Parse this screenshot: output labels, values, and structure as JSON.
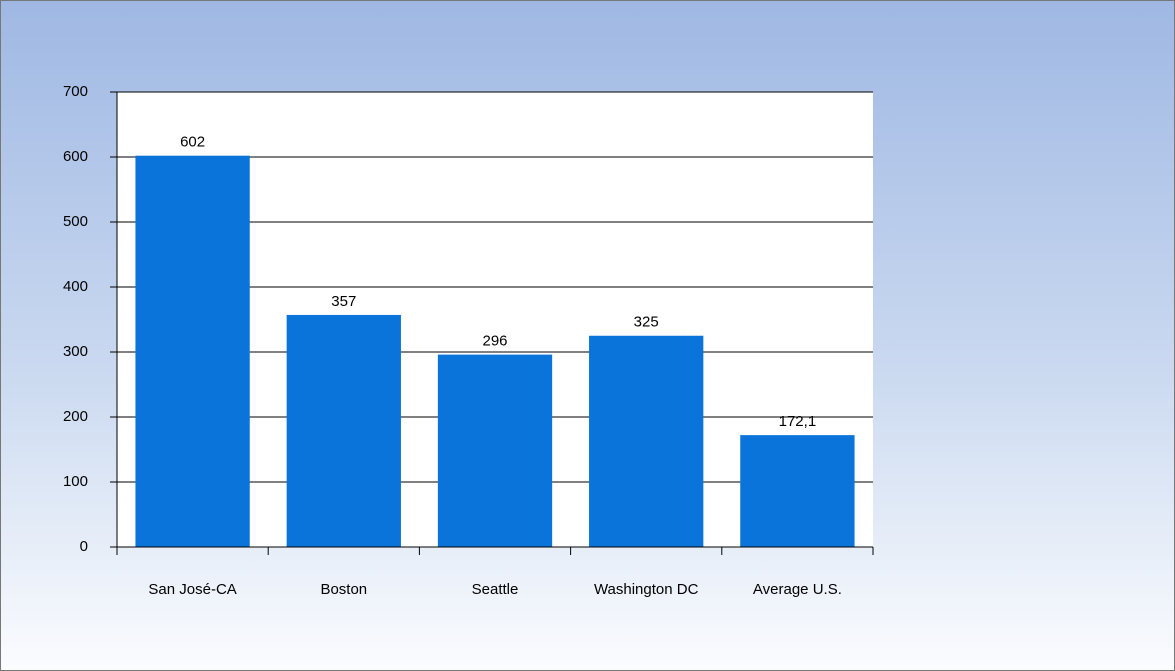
{
  "chart_data": {
    "type": "bar",
    "categories": [
      "San José-CA",
      "Boston",
      "Seattle",
      "Washington DC",
      "Average U.S."
    ],
    "values": [
      602,
      357,
      296,
      325,
      172.1
    ],
    "value_labels": [
      "602",
      "357",
      "296",
      "325",
      "172,1"
    ],
    "color": "#0a74da",
    "ylim": [
      0,
      700
    ],
    "yticks": [
      0,
      100,
      200,
      300,
      400,
      500,
      600,
      700
    ],
    "grid": true
  }
}
